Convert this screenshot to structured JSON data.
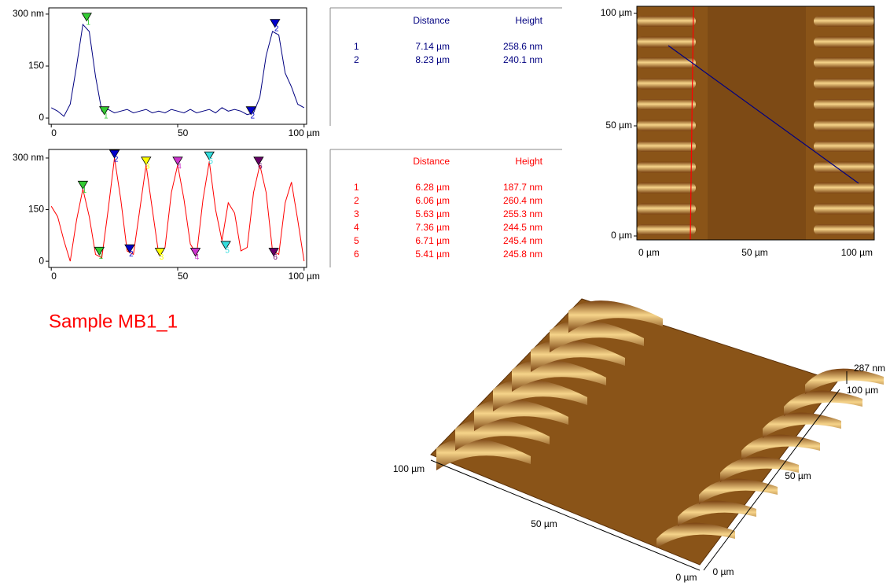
{
  "chart_data": [
    {
      "type": "line",
      "color": "#000080",
      "x": [
        0,
        2.5,
        5,
        7.5,
        10,
        12.5,
        15,
        17.5,
        20,
        22.5,
        25,
        27.5,
        30,
        32.5,
        35,
        37.5,
        40,
        42.5,
        45,
        47.5,
        50,
        52.5,
        55,
        57.5,
        60,
        62.5,
        65,
        67.5,
        70,
        72.5,
        75,
        77.5,
        80,
        82.5,
        85,
        87.5,
        90,
        92.5,
        95,
        97.5,
        100
      ],
      "values": [
        30,
        20,
        5,
        40,
        150,
        270,
        250,
        120,
        20,
        25,
        15,
        20,
        25,
        15,
        20,
        25,
        15,
        20,
        15,
        25,
        20,
        15,
        25,
        15,
        20,
        25,
        15,
        30,
        20,
        25,
        20,
        10,
        15,
        60,
        180,
        250,
        240,
        130,
        90,
        40,
        30
      ],
      "xlim": [
        -1,
        101
      ],
      "xticks": [
        0,
        50,
        {
          "value": 100,
          "label": "100 µm"
        }
      ],
      "ylim": [
        -18,
        318
      ],
      "yticks": [
        0,
        150,
        {
          "value": 300,
          "label": "300 nm"
        }
      ],
      "markers": [
        {
          "label": "1",
          "x": 14,
          "y": 280,
          "color": "#33cc33",
          "dir": "down"
        },
        {
          "label": "1",
          "x": 21,
          "y": 10,
          "color": "#33cc33",
          "dir": "down"
        },
        {
          "label": "2",
          "x": 79,
          "y": 10,
          "color": "#0000cc",
          "dir": "down"
        },
        {
          "label": "2",
          "x": 88.5,
          "y": 262,
          "color": "#0000cc",
          "dir": "down"
        }
      ]
    },
    {
      "type": "line",
      "color": "#ff0000",
      "x": [
        0,
        2.5,
        5,
        7.5,
        10,
        12.5,
        15,
        17.5,
        20,
        22.5,
        25,
        27.5,
        30,
        32.5,
        35,
        37.5,
        40,
        42.5,
        45,
        47.5,
        50,
        52.5,
        55,
        57.5,
        60,
        62.5,
        65,
        67.5,
        70,
        72.5,
        75,
        77.5,
        80,
        82.5,
        85,
        87.5,
        90,
        92.5,
        95,
        97.5,
        100
      ],
      "values": [
        160,
        130,
        60,
        0,
        120,
        210,
        130,
        20,
        10,
        150,
        300,
        180,
        30,
        20,
        150,
        280,
        150,
        20,
        40,
        200,
        280,
        180,
        50,
        20,
        180,
        290,
        150,
        60,
        170,
        140,
        30,
        40,
        200,
        280,
        200,
        30,
        20,
        170,
        230,
        120,
        0
      ],
      "xlim": [
        -1,
        101
      ],
      "xticks": [
        0,
        50,
        {
          "value": 100,
          "label": "100 µm"
        }
      ],
      "ylim": [
        -18,
        325
      ],
      "yticks": [
        0,
        150,
        {
          "value": 300,
          "label": "300 nm"
        }
      ],
      "markers": [
        {
          "label": "1",
          "x": 12.5,
          "y": 210,
          "color": "#33cc33"
        },
        {
          "label": "1",
          "x": 19,
          "y": 18,
          "color": "#33cc33"
        },
        {
          "label": "2",
          "x": 25,
          "y": 300,
          "color": "#0000cc"
        },
        {
          "label": "2",
          "x": 31,
          "y": 25,
          "color": "#0000cc"
        },
        {
          "label": "3",
          "x": 37.5,
          "y": 280,
          "color": "#ffff00"
        },
        {
          "label": "3",
          "x": 43,
          "y": 15,
          "color": "#ffff00"
        },
        {
          "label": "4",
          "x": 50,
          "y": 280,
          "color": "#cc33cc"
        },
        {
          "label": "4",
          "x": 57,
          "y": 15,
          "color": "#cc33cc"
        },
        {
          "label": "5",
          "x": 62.5,
          "y": 295,
          "color": "#33dddd"
        },
        {
          "label": "5",
          "x": 69,
          "y": 35,
          "color": "#33dddd"
        },
        {
          "label": "6",
          "x": 82,
          "y": 280,
          "color": "#660066"
        },
        {
          "label": "6",
          "x": 88,
          "y": 15,
          "color": "#660066"
        }
      ]
    }
  ],
  "tables": [
    {
      "color": "#000080",
      "header": [
        "Distance",
        "Height"
      ],
      "rows": [
        [
          "1",
          "7.14 µm",
          "258.6 nm"
        ],
        [
          "2",
          "8.23 µm",
          "240.1 nm"
        ]
      ]
    },
    {
      "color": "#ff0000",
      "header": [
        "Distance",
        "Height"
      ],
      "rows": [
        [
          "1",
          "6.28 µm",
          "187.7 nm"
        ],
        [
          "2",
          "6.06 µm",
          "260.4 nm"
        ],
        [
          "3",
          "5.63 µm",
          "255.3 nm"
        ],
        [
          "4",
          "7.36 µm",
          "244.5 nm"
        ],
        [
          "5",
          "6.71 µm",
          "245.4 nm"
        ],
        [
          "6",
          "5.41 µm",
          "245.8 nm"
        ]
      ]
    }
  ],
  "image": {
    "y_labels": [
      "100 µm",
      "50 µm",
      "0 µm"
    ],
    "x_labels": [
      "0 µm",
      "50 µm",
      "100 µm"
    ]
  },
  "sample_title": "Sample MB1_1",
  "view3d": {
    "front_labels": [
      "100 µm",
      "50 µm",
      "0 µm"
    ],
    "side_labels": [
      "0 µm",
      "50 µm",
      "100 µm"
    ],
    "z_label": "287 nm"
  }
}
